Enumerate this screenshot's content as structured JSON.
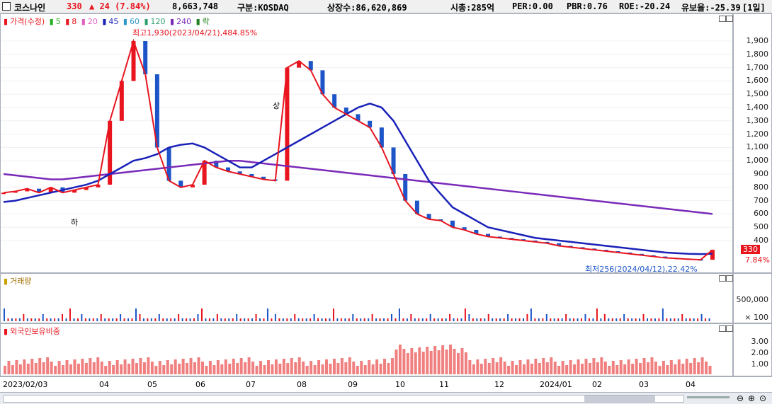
{
  "header": {
    "name": "코스나인",
    "price": "330",
    "change": "▲ 24 (7.84%)",
    "volume": "8,663,748",
    "market": "구분:KOSDAQ",
    "listed": "상장수:86,620,869",
    "mktcap": "시총:285억",
    "per": "PER:0.00",
    "pbr": "PBR:0.76",
    "roe": "ROE:-20.24",
    "float": "유보율:-25.39",
    "period": "[1일]"
  },
  "legend": {
    "price": "가격(수정)",
    "ma5": "5",
    "ma8": "8",
    "ma20": "20",
    "ma45": "45",
    "ma60": "60",
    "ma120": "120",
    "ma240": "240",
    "fall": "락"
  },
  "annotations": {
    "high": "최고1,930(2023/04/21),484.85%",
    "low": "최저256(2024/04/12),22.42%",
    "ha": "하",
    "sang": "상"
  },
  "price_axis": [
    "1,900",
    "1,800",
    "1,700",
    "1,600",
    "1,500",
    "1,400",
    "1,300",
    "1,200",
    "1,100",
    "1,000",
    "900",
    "800",
    "700",
    "600",
    "500",
    "400"
  ],
  "current_price_tag": "330",
  "current_pct": "7.84%",
  "volume_panel": {
    "title": "거래량",
    "ticks": [
      "500,000",
      "× 100"
    ]
  },
  "foreign_panel": {
    "title": "외국인보유비중",
    "ticks": [
      "3.00",
      "2.00",
      "1.00"
    ]
  },
  "x_axis": [
    "2023/02/03",
    "04",
    "05",
    "06",
    "07",
    "08",
    "09",
    "10",
    "11",
    "12",
    "2024/01",
    "02",
    "03",
    "04"
  ],
  "colors": {
    "up": "#e8141e",
    "down": "#1d55c8",
    "ma5": "#e8141e",
    "ma20": "#e0609a",
    "ma45": "#1a22b8",
    "ma60": "#23a0a0",
    "ma120": "#2ea06e",
    "ma240": "#7a2ab8",
    "volume_up": "#e8141e",
    "volume_down": "#1d55c8",
    "foreign": "#f08080"
  },
  "chart_data": {
    "type": "line",
    "title": "",
    "price_close": [
      760,
      770,
      790,
      760,
      800,
      760,
      780,
      800,
      820,
      1300,
      1600,
      1900,
      1650,
      1100,
      850,
      800,
      820,
      1000,
      950,
      920,
      900,
      880,
      860,
      850,
      1700,
      1750,
      1680,
      1500,
      1400,
      1350,
      1300,
      1250,
      1100,
      900,
      700,
      600,
      560,
      550,
      500,
      480,
      450,
      430,
      420,
      410,
      400,
      390,
      380,
      360,
      350,
      340,
      330,
      320,
      310,
      300,
      290,
      280,
      270,
      265,
      260,
      256,
      330
    ],
    "ma45": [
      690,
      700,
      720,
      740,
      760,
      780,
      800,
      820,
      850,
      900,
      950,
      1000,
      1020,
      1050,
      1100,
      1120,
      1130,
      1100,
      1050,
      1000,
      950,
      950,
      1000,
      1050,
      1100,
      1150,
      1200,
      1250,
      1300,
      1350,
      1400,
      1430,
      1400,
      1300,
      1150,
      1000,
      850,
      750,
      650,
      600,
      550,
      500,
      480,
      460,
      440,
      420,
      410,
      400,
      390,
      380,
      370,
      360,
      350,
      340,
      330,
      320,
      310,
      305,
      300,
      298,
      300
    ],
    "ma240": [
      900,
      890,
      880,
      870,
      860,
      860,
      870,
      880,
      890,
      900,
      910,
      920,
      930,
      940,
      950,
      960,
      970,
      980,
      990,
      1000,
      1000,
      990,
      980,
      970,
      960,
      950,
      940,
      930,
      920,
      910,
      900,
      890,
      880,
      870,
      860,
      850,
      840,
      830,
      820,
      810,
      800,
      790,
      780,
      770,
      760,
      750,
      740,
      730,
      720,
      710,
      700,
      690,
      680,
      670,
      660,
      650,
      640,
      630,
      620,
      610,
      600
    ]
  }
}
